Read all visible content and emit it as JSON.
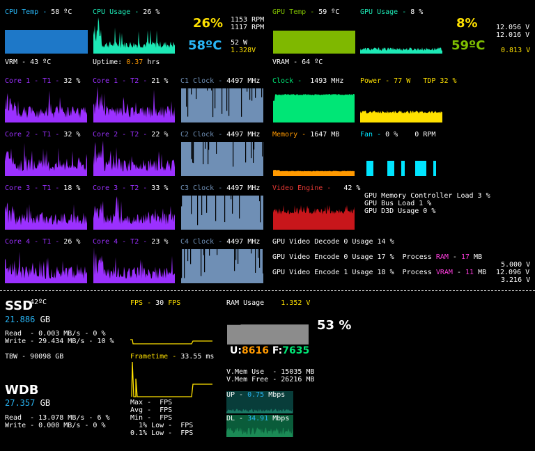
{
  "colors": {
    "cyan": "#29b6f6",
    "teal": "#1de9b6",
    "green": "#7fbf00",
    "white": "#ffffff",
    "yellow": "#ffe100",
    "orange": "#ff9900",
    "red": "#e53935",
    "purple": "#9b30ff",
    "gray": "#6f8fb5",
    "aqua": "#00e5ff",
    "lime": "#00e676",
    "ramgray": "#8c8c8c"
  },
  "cpu": {
    "temp_label": "CPU Temp",
    "temp_value": "58 ºC",
    "usage_label": "CPU Usage",
    "usage_value": "26 %",
    "big_usage": "26%",
    "big_temp": "58ºC",
    "fan1": "1153 RPM",
    "fan2": "1117 RPM",
    "power": "52 W",
    "voltage": "1.328V",
    "vrm": "VRM - 43 ºC",
    "uptime_label": "Uptime:",
    "uptime_value": "0.37",
    "uptime_unit": "hrs",
    "temp_level": 0.58,
    "usage_level": 0.26
  },
  "gpu": {
    "temp_label": "GPU Temp",
    "temp_value": "59 ºC",
    "usage_label": "GPU Usage",
    "usage_value": "8 %",
    "big_usage": "8%",
    "big_temp": "59ºC",
    "v12a": "12.056 V",
    "v12b": "12.016 V",
    "voltage": "0.813 V",
    "vram": "VRAM - 64 ºC",
    "clock_label": "Clock",
    "clock_value": "1493 MHz",
    "power_label": "Power",
    "power_value": "77 W",
    "tdp_label": "TDP",
    "tdp_value": "32 %",
    "memory_label": "Memory",
    "memory_value": "1647 MB",
    "fan_label": "Fan",
    "fan_value": "0 %",
    "fan_rpm": "0 RPM",
    "video_engine_label": "Video Engine",
    "video_engine_value": "42 %",
    "mem_ctrl": "GPU Memory Controller Load 3 %",
    "bus": "GPU Bus Load 1 %",
    "d3d": "GPU D3D Usage 0 %",
    "decode": "GPU Video Decode 0 Usage 14 %",
    "encode0": "GPU Video Encode 0 Usage 17 %",
    "encode1": "GPU Video Encode 1 Usage 18 %",
    "process_label": "Process",
    "process_ram_label": "RAM",
    "process_ram_value": "17",
    "process_ram_unit": "MB",
    "process_vram_label": "VRAM",
    "process_vram_value": "11",
    "process_vram_unit": "MB",
    "v5": "5.000 V",
    "v12c": "12.096 V",
    "v3": "3.216 V"
  },
  "cores": [
    {
      "t1_label": "Core 1 - T1",
      "t1_value": "32 %",
      "t2_label": "Core 1 - T2",
      "t2_value": "21 %",
      "clock_label": "C1 Clock",
      "clock_value": "4497 MHz"
    },
    {
      "t1_label": "Core 2 - T1",
      "t1_value": "32 %",
      "t2_label": "Core 2 - T2",
      "t2_value": "22 %",
      "clock_label": "C2 Clock",
      "clock_value": "4497 MHz"
    },
    {
      "t1_label": "Core 3 - T1",
      "t1_value": "18 %",
      "t2_label": "Core 3 - T2",
      "t2_value": "33 %",
      "clock_label": "C3 Clock",
      "clock_value": "4497 MHz"
    },
    {
      "t1_label": "Core 4 - T1",
      "t1_value": "26 %",
      "t2_label": "Core 4 - T2",
      "t2_value": "23 %",
      "clock_label": "C4 Clock",
      "clock_value": "4497 MHz"
    }
  ],
  "ssd": {
    "name": "SSD",
    "temp": "42ºC",
    "size": "21.886",
    "unit": "GB",
    "read": "Read  - 0.003 MB/s - 0 %",
    "write": "Write - 29.434 MB/s - 10 %",
    "tbw": "TBW - 90098 GB"
  },
  "wdb": {
    "name": "WDB",
    "size": "27.357",
    "unit": "GB",
    "read": "Read  - 13.078 MB/s - 6 %",
    "write": "Write - 0.000 MB/s - 0 %"
  },
  "fps": {
    "label": "FPS",
    "value": "30",
    "unit": "FPS",
    "frametime_label": "Frametime",
    "frametime_value": "33.55 ms",
    "max": "Max -  FPS",
    "avg": "Avg -  FPS",
    "min": "Min -  FPS",
    "low1": "  1% Low -  FPS",
    "low01": "0.1% Low -  FPS"
  },
  "ram": {
    "label": "RAM Usage",
    "voltage": "1.352 V",
    "percent": "53 %",
    "used_label": "U:",
    "used_value": "8616",
    "free_label": "F:",
    "free_value": "7635",
    "vmem_use": "V.Mem Use  - 15035 MB",
    "vmem_free": "V.Mem Free - 26216 MB"
  },
  "net": {
    "up_label": "UP -",
    "up_value": "0.75",
    "up_unit": "Mbps",
    "dl_label": "DL -",
    "dl_value": "34.91",
    "dl_unit": "Mbps"
  }
}
